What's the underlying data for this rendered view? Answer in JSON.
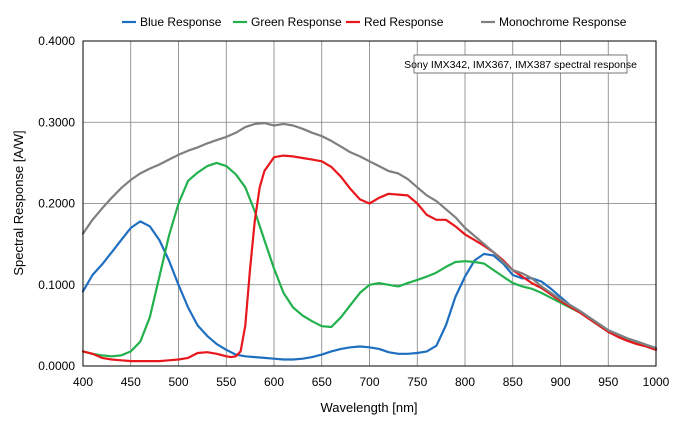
{
  "chart_data": {
    "type": "line",
    "xlabel": "Wavelength [nm]",
    "ylabel": "Spectral Response [A/W]",
    "xlim": [
      400,
      1000
    ],
    "ylim": [
      0,
      0.4
    ],
    "x_ticks": [
      "400",
      "450",
      "500",
      "550",
      "600",
      "650",
      "700",
      "750",
      "800",
      "850",
      "900",
      "950",
      "1000"
    ],
    "y_ticks": [
      "0.0000",
      "0.1000",
      "0.2000",
      "0.3000",
      "0.4000"
    ],
    "grid": true,
    "legend_position": "top",
    "annotation": "Sony IMX342, IMX367, IMX387 spectral response",
    "series": [
      {
        "name": "Blue Response",
        "color": "#1f6fc0",
        "points": [
          [
            400,
            0.092
          ],
          [
            410,
            0.112
          ],
          [
            420,
            0.125
          ],
          [
            430,
            0.14
          ],
          [
            440,
            0.155
          ],
          [
            450,
            0.17
          ],
          [
            460,
            0.178
          ],
          [
            470,
            0.172
          ],
          [
            480,
            0.155
          ],
          [
            490,
            0.13
          ],
          [
            500,
            0.1
          ],
          [
            510,
            0.072
          ],
          [
            520,
            0.05
          ],
          [
            530,
            0.037
          ],
          [
            540,
            0.027
          ],
          [
            550,
            0.02
          ],
          [
            560,
            0.014
          ],
          [
            570,
            0.012
          ],
          [
            580,
            0.011
          ],
          [
            590,
            0.01
          ],
          [
            600,
            0.009
          ],
          [
            610,
            0.008
          ],
          [
            620,
            0.008
          ],
          [
            630,
            0.009
          ],
          [
            640,
            0.011
          ],
          [
            650,
            0.014
          ],
          [
            660,
            0.018
          ],
          [
            670,
            0.021
          ],
          [
            680,
            0.023
          ],
          [
            690,
            0.024
          ],
          [
            700,
            0.023
          ],
          [
            710,
            0.021
          ],
          [
            720,
            0.017
          ],
          [
            730,
            0.015
          ],
          [
            740,
            0.015
          ],
          [
            750,
            0.016
          ],
          [
            760,
            0.018
          ],
          [
            770,
            0.025
          ],
          [
            780,
            0.05
          ],
          [
            790,
            0.085
          ],
          [
            800,
            0.11
          ],
          [
            810,
            0.13
          ],
          [
            820,
            0.138
          ],
          [
            830,
            0.136
          ],
          [
            840,
            0.126
          ],
          [
            850,
            0.112
          ],
          [
            860,
            0.108
          ],
          [
            870,
            0.108
          ],
          [
            880,
            0.104
          ],
          [
            890,
            0.095
          ],
          [
            900,
            0.085
          ],
          [
            910,
            0.075
          ],
          [
            920,
            0.068
          ],
          [
            930,
            0.06
          ],
          [
            940,
            0.052
          ],
          [
            950,
            0.044
          ],
          [
            960,
            0.039
          ],
          [
            970,
            0.034
          ],
          [
            980,
            0.03
          ],
          [
            990,
            0.026
          ],
          [
            1000,
            0.022
          ]
        ]
      },
      {
        "name": "Green Response",
        "color": "#22b14c",
        "points": [
          [
            400,
            0.018
          ],
          [
            410,
            0.015
          ],
          [
            420,
            0.013
          ],
          [
            430,
            0.012
          ],
          [
            440,
            0.013
          ],
          [
            450,
            0.018
          ],
          [
            460,
            0.03
          ],
          [
            470,
            0.06
          ],
          [
            480,
            0.11
          ],
          [
            490,
            0.16
          ],
          [
            500,
            0.2
          ],
          [
            510,
            0.228
          ],
          [
            520,
            0.238
          ],
          [
            530,
            0.246
          ],
          [
            540,
            0.25
          ],
          [
            550,
            0.246
          ],
          [
            560,
            0.236
          ],
          [
            570,
            0.22
          ],
          [
            580,
            0.19
          ],
          [
            590,
            0.155
          ],
          [
            600,
            0.12
          ],
          [
            610,
            0.09
          ],
          [
            620,
            0.072
          ],
          [
            630,
            0.062
          ],
          [
            640,
            0.055
          ],
          [
            650,
            0.049
          ],
          [
            660,
            0.048
          ],
          [
            670,
            0.06
          ],
          [
            680,
            0.075
          ],
          [
            690,
            0.09
          ],
          [
            700,
            0.1
          ],
          [
            710,
            0.102
          ],
          [
            720,
            0.1
          ],
          [
            730,
            0.098
          ],
          [
            740,
            0.102
          ],
          [
            750,
            0.106
          ],
          [
            760,
            0.11
          ],
          [
            770,
            0.115
          ],
          [
            780,
            0.122
          ],
          [
            790,
            0.128
          ],
          [
            800,
            0.129
          ],
          [
            810,
            0.128
          ],
          [
            820,
            0.126
          ],
          [
            830,
            0.118
          ],
          [
            840,
            0.11
          ],
          [
            850,
            0.102
          ],
          [
            860,
            0.098
          ],
          [
            870,
            0.095
          ],
          [
            880,
            0.09
          ],
          [
            890,
            0.084
          ],
          [
            900,
            0.078
          ],
          [
            910,
            0.072
          ],
          [
            920,
            0.066
          ],
          [
            930,
            0.058
          ],
          [
            940,
            0.05
          ],
          [
            950,
            0.042
          ],
          [
            960,
            0.037
          ],
          [
            970,
            0.032
          ],
          [
            980,
            0.028
          ],
          [
            990,
            0.024
          ],
          [
            1000,
            0.02
          ]
        ]
      },
      {
        "name": "Red Response",
        "color": "#e8171c",
        "points": [
          [
            400,
            0.018
          ],
          [
            410,
            0.015
          ],
          [
            420,
            0.01
          ],
          [
            430,
            0.008
          ],
          [
            440,
            0.007
          ],
          [
            450,
            0.006
          ],
          [
            460,
            0.006
          ],
          [
            470,
            0.006
          ],
          [
            480,
            0.006
          ],
          [
            490,
            0.007
          ],
          [
            500,
            0.008
          ],
          [
            510,
            0.01
          ],
          [
            520,
            0.016
          ],
          [
            530,
            0.017
          ],
          [
            540,
            0.015
          ],
          [
            550,
            0.012
          ],
          [
            555,
            0.011
          ],
          [
            560,
            0.012
          ],
          [
            565,
            0.018
          ],
          [
            570,
            0.05
          ],
          [
            575,
            0.12
          ],
          [
            580,
            0.18
          ],
          [
            585,
            0.22
          ],
          [
            590,
            0.24
          ],
          [
            600,
            0.257
          ],
          [
            610,
            0.259
          ],
          [
            620,
            0.258
          ],
          [
            630,
            0.256
          ],
          [
            640,
            0.254
          ],
          [
            650,
            0.252
          ],
          [
            660,
            0.245
          ],
          [
            670,
            0.233
          ],
          [
            680,
            0.218
          ],
          [
            690,
            0.205
          ],
          [
            700,
            0.2
          ],
          [
            710,
            0.207
          ],
          [
            720,
            0.212
          ],
          [
            730,
            0.211
          ],
          [
            740,
            0.21
          ],
          [
            750,
            0.2
          ],
          [
            760,
            0.186
          ],
          [
            770,
            0.18
          ],
          [
            780,
            0.18
          ],
          [
            790,
            0.172
          ],
          [
            800,
            0.162
          ],
          [
            810,
            0.155
          ],
          [
            820,
            0.148
          ],
          [
            830,
            0.14
          ],
          [
            840,
            0.13
          ],
          [
            850,
            0.118
          ],
          [
            860,
            0.11
          ],
          [
            870,
            0.102
          ],
          [
            880,
            0.096
          ],
          [
            890,
            0.088
          ],
          [
            900,
            0.08
          ],
          [
            910,
            0.073
          ],
          [
            920,
            0.066
          ],
          [
            930,
            0.058
          ],
          [
            940,
            0.05
          ],
          [
            950,
            0.042
          ],
          [
            960,
            0.036
          ],
          [
            970,
            0.031
          ],
          [
            980,
            0.027
          ],
          [
            990,
            0.024
          ],
          [
            1000,
            0.02
          ]
        ]
      },
      {
        "name": "Monochrome Response",
        "color": "#7f7f7f",
        "points": [
          [
            400,
            0.163
          ],
          [
            410,
            0.18
          ],
          [
            420,
            0.194
          ],
          [
            430,
            0.207
          ],
          [
            440,
            0.219
          ],
          [
            450,
            0.229
          ],
          [
            460,
            0.237
          ],
          [
            470,
            0.243
          ],
          [
            480,
            0.248
          ],
          [
            490,
            0.254
          ],
          [
            500,
            0.26
          ],
          [
            510,
            0.265
          ],
          [
            520,
            0.269
          ],
          [
            530,
            0.274
          ],
          [
            540,
            0.278
          ],
          [
            550,
            0.282
          ],
          [
            560,
            0.287
          ],
          [
            570,
            0.294
          ],
          [
            580,
            0.298
          ],
          [
            590,
            0.299
          ],
          [
            600,
            0.296
          ],
          [
            610,
            0.298
          ],
          [
            620,
            0.296
          ],
          [
            630,
            0.292
          ],
          [
            640,
            0.287
          ],
          [
            650,
            0.283
          ],
          [
            660,
            0.277
          ],
          [
            670,
            0.27
          ],
          [
            680,
            0.263
          ],
          [
            690,
            0.258
          ],
          [
            700,
            0.252
          ],
          [
            710,
            0.246
          ],
          [
            720,
            0.24
          ],
          [
            730,
            0.237
          ],
          [
            740,
            0.23
          ],
          [
            750,
            0.22
          ],
          [
            760,
            0.21
          ],
          [
            770,
            0.203
          ],
          [
            780,
            0.193
          ],
          [
            790,
            0.183
          ],
          [
            800,
            0.17
          ],
          [
            810,
            0.16
          ],
          [
            820,
            0.15
          ],
          [
            830,
            0.14
          ],
          [
            840,
            0.128
          ],
          [
            850,
            0.118
          ],
          [
            860,
            0.114
          ],
          [
            870,
            0.108
          ],
          [
            880,
            0.098
          ],
          [
            890,
            0.09
          ],
          [
            900,
            0.082
          ],
          [
            910,
            0.075
          ],
          [
            920,
            0.068
          ],
          [
            930,
            0.06
          ],
          [
            940,
            0.052
          ],
          [
            950,
            0.044
          ],
          [
            960,
            0.039
          ],
          [
            970,
            0.034
          ],
          [
            980,
            0.03
          ],
          [
            990,
            0.026
          ],
          [
            1000,
            0.022
          ]
        ]
      }
    ]
  }
}
